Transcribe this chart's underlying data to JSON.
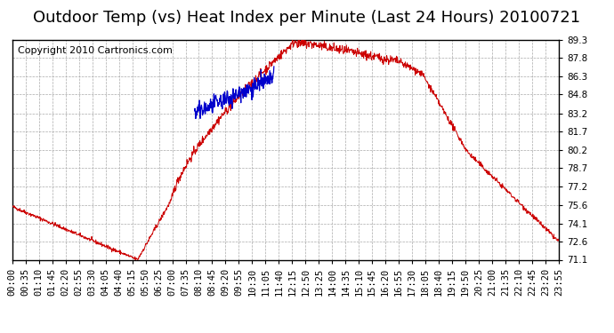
{
  "title": "Outdoor Temp (vs) Heat Index per Minute (Last 24 Hours) 20100721",
  "copyright": "Copyright 2010 Cartronics.com",
  "yticks": [
    71.1,
    72.6,
    74.1,
    75.6,
    77.2,
    78.7,
    80.2,
    81.7,
    83.2,
    84.8,
    86.3,
    87.8,
    89.3
  ],
  "ymin": 71.1,
  "ymax": 89.3,
  "bg_color": "#ffffff",
  "plot_bg_color": "#ffffff",
  "grid_color": "#aaaaaa",
  "red_color": "#cc0000",
  "blue_color": "#0000cc",
  "title_fontsize": 13,
  "copyright_fontsize": 8,
  "tick_fontsize": 7.5,
  "xtick_labels": [
    "00:00",
    "00:35",
    "01:10",
    "01:45",
    "02:20",
    "02:55",
    "03:30",
    "04:05",
    "04:40",
    "05:15",
    "05:50",
    "06:25",
    "07:00",
    "07:35",
    "08:10",
    "08:45",
    "09:20",
    "09:55",
    "10:30",
    "11:05",
    "11:40",
    "12:15",
    "12:50",
    "13:25",
    "14:00",
    "14:35",
    "15:10",
    "15:45",
    "16:20",
    "16:55",
    "17:30",
    "18:05",
    "18:40",
    "19:15",
    "19:50",
    "20:25",
    "21:00",
    "21:35",
    "22:10",
    "22:45",
    "23:20",
    "23:55"
  ]
}
